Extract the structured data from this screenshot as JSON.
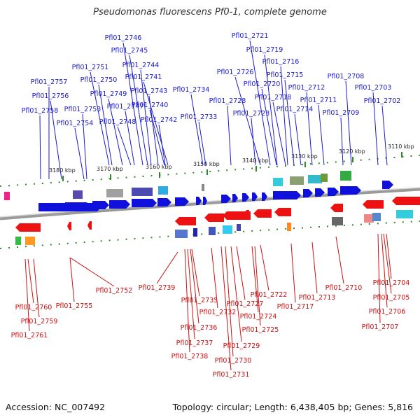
{
  "title": "Pseudomonas fluorescens Pf0-1, complete genome",
  "footer": {
    "accession": "Accession: NC_007492",
    "topology": "Topology: circular; Length: 6,438,405 bp; Genes: 5,816"
  },
  "colors": {
    "forward": "#1010dd",
    "reverse": "#ee1111",
    "backbone": "#888888",
    "ticks": "#228822"
  },
  "kbp_ticks": [
    "3180 kbp",
    "3170 kbp",
    "3160 kbp",
    "3150 kbp",
    "3140 kbp",
    "3130 kbp",
    "3120 kbp",
    "3110 kbp"
  ],
  "upper_labels": [
    "Pfl01_2746",
    "Pfl01_2745",
    "Pfl01_2744",
    "Pfl01_2751",
    "Pfl01_2741",
    "Pfl01_2757",
    "Pfl01_2750",
    "Pfl01_2743",
    "Pfl01_2734",
    "Pfl01_2756",
    "Pfl01_2749",
    "Pfl01_2740",
    "Pfl01_2758",
    "Pfl01_2753",
    "Pfl01_2747",
    "Pfl01_2742",
    "Pfl01_2733",
    "Pfl01_2754",
    "Pfl01_2748",
    "Pfl01_2721",
    "Pfl01_2719",
    "Pfl01_2716",
    "Pfl01_2726",
    "Pfl01_2715",
    "Pfl01_2708",
    "Pfl01_2720",
    "Pfl01_2712",
    "Pfl01_2703",
    "Pfl01_2718",
    "Pfl01_2728",
    "Pfl01_2711",
    "Pfl01_2702",
    "Pfl01_2714",
    "Pfl01_2723",
    "Pfl01_2709"
  ],
  "lower_labels": [
    "Pfl01_2752",
    "Pfl01_2739",
    "Pfl01_2710",
    "Pfl01_2704",
    "Pfl01_2722",
    "Pfl01_2713",
    "Pfl01_2735",
    "Pfl01_2705",
    "Pfl01_2727",
    "Pfl01_2760",
    "Pfl01_2755",
    "Pfl01_2732",
    "Pfl01_2717",
    "Pfl01_2706",
    "Pfl01_2724",
    "Pfl01_2759",
    "Pfl01_2736",
    "Pfl01_2725",
    "Pfl01_2707",
    "Pfl01_2761",
    "Pfl01_2737",
    "Pfl01_2729",
    "Pfl01_2738",
    "Pfl01_2730",
    "Pfl01_2731"
  ]
}
